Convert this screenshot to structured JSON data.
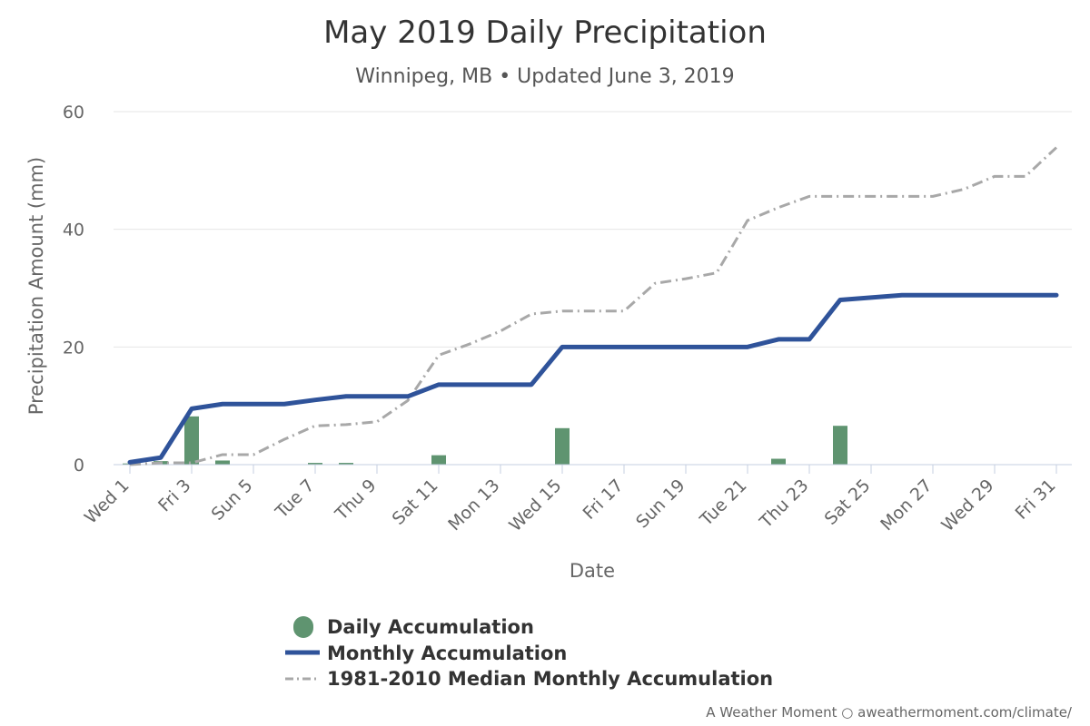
{
  "chart_data": {
    "type": "bar",
    "title": "May 2019 Daily Precipitation",
    "subtitle": "Winnipeg, MB • Updated June 3, 2019",
    "xlabel": "Date",
    "ylabel": "Precipitation Amount (mm)",
    "ylim": [
      0,
      60
    ],
    "yticks": [
      0,
      20,
      40,
      60
    ],
    "grid": true,
    "legend_position": "bottom",
    "credit": "A Weather Moment ○ aweathermoment.com/climate/",
    "x": [
      1,
      2,
      3,
      4,
      5,
      6,
      7,
      8,
      9,
      10,
      11,
      12,
      13,
      14,
      15,
      16,
      17,
      18,
      19,
      20,
      21,
      22,
      23,
      24,
      25,
      26,
      27,
      28,
      29,
      30,
      31
    ],
    "x_tick_labels": [
      {
        "day": 1,
        "label": "Wed 1"
      },
      {
        "day": 3,
        "label": "Fri 3"
      },
      {
        "day": 5,
        "label": "Sun 5"
      },
      {
        "day": 7,
        "label": "Tue 7"
      },
      {
        "day": 9,
        "label": "Thu 9"
      },
      {
        "day": 11,
        "label": "Sat 11"
      },
      {
        "day": 13,
        "label": "Mon 13"
      },
      {
        "day": 15,
        "label": "Wed 15"
      },
      {
        "day": 17,
        "label": "Fri 17"
      },
      {
        "day": 19,
        "label": "Sun 19"
      },
      {
        "day": 21,
        "label": "Tue 21"
      },
      {
        "day": 23,
        "label": "Thu 23"
      },
      {
        "day": 25,
        "label": "Sat 25"
      },
      {
        "day": 27,
        "label": "Mon 27"
      },
      {
        "day": 29,
        "label": "Wed 29"
      },
      {
        "day": 31,
        "label": "Fri 31"
      }
    ],
    "series": [
      {
        "name": "Daily Accumulation",
        "kind": "bar",
        "color": "#5f9470",
        "values": [
          0.2,
          0.6,
          8.2,
          0.7,
          0,
          0,
          0.3,
          0.3,
          0,
          0,
          1.6,
          0,
          0,
          0,
          6.2,
          0,
          0,
          0,
          0,
          0,
          0,
          1.0,
          0,
          6.6,
          0,
          0,
          0,
          0,
          0,
          0,
          0
        ]
      },
      {
        "name": "Monthly Accumulation",
        "kind": "line",
        "color": "#2f539a",
        "values": [
          0.4,
          1.2,
          9.5,
          10.3,
          10.3,
          10.3,
          11.0,
          11.6,
          11.6,
          11.6,
          13.6,
          13.6,
          13.6,
          13.6,
          20.0,
          20.0,
          20.0,
          20.0,
          20.0,
          20.0,
          20.0,
          21.3,
          21.3,
          28.0,
          28.4,
          28.8,
          28.8,
          28.8,
          28.8,
          28.8,
          28.8
        ]
      },
      {
        "name": "1981-2010 Median Monthly Accumulation",
        "kind": "line-dashdot",
        "color": "#a8a8a8",
        "values": [
          0,
          0.3,
          0.3,
          1.7,
          1.7,
          4.3,
          6.6,
          6.8,
          7.3,
          10.9,
          18.6,
          20.5,
          22.7,
          25.6,
          26.1,
          26.1,
          26.1,
          30.8,
          31.6,
          32.6,
          41.5,
          43.7,
          45.6,
          45.6,
          45.6,
          45.6,
          45.6,
          46.8,
          49.0,
          49.0,
          53.9
        ]
      }
    ]
  }
}
